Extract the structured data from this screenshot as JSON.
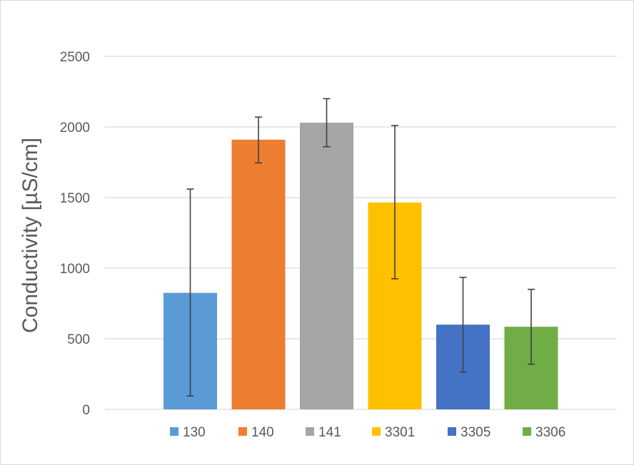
{
  "chart_data": {
    "type": "bar",
    "title": "",
    "xlabel": "",
    "ylabel": "Conductivity [µS/cm]",
    "ylim": [
      0,
      2500
    ],
    "yticks": [
      0,
      500,
      1000,
      1500,
      2000,
      2500
    ],
    "grid": true,
    "legend_position": "bottom",
    "series": [
      {
        "name": "130",
        "value": 825,
        "error_low": 95,
        "error_high": 1560,
        "color": "#5B9BD5"
      },
      {
        "name": "140",
        "value": 1910,
        "error_low": 1745,
        "error_high": 2070,
        "color": "#ED7D31"
      },
      {
        "name": "141",
        "value": 2030,
        "error_low": 1860,
        "error_high": 2200,
        "color": "#A5A5A5"
      },
      {
        "name": "3301",
        "value": 1465,
        "error_low": 925,
        "error_high": 2010,
        "color": "#FFC000"
      },
      {
        "name": "3305",
        "value": 600,
        "error_low": 265,
        "error_high": 935,
        "color": "#4472C4"
      },
      {
        "name": "3306",
        "value": 585,
        "error_low": 320,
        "error_high": 850,
        "color": "#70AD47"
      }
    ]
  }
}
